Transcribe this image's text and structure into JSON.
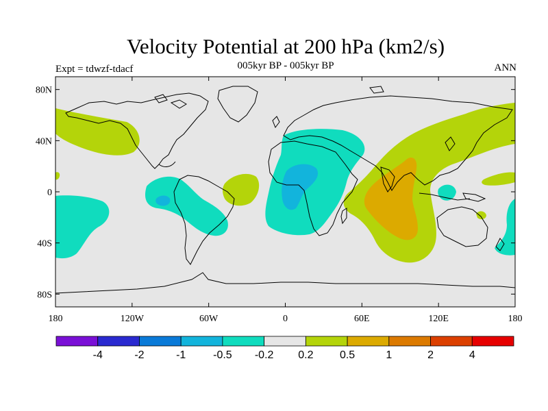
{
  "title": "Velocity Potential at 200 hPa (km2/s)",
  "subtitle": "005kyr BP - 005kyr BP",
  "left_label": "Expt = tdwzf-tdacf",
  "right_label": "ANN",
  "colors": {
    "background_field": "#e6e6e6",
    "coastline": "#000000",
    "frame": "#000000"
  },
  "map": {
    "projection": "cylindrical-equidistant",
    "lon_range": [
      -180,
      180
    ],
    "lat_range": [
      -90,
      90
    ],
    "x_ticks": [
      {
        "lon": -180,
        "label": "180"
      },
      {
        "lon": -120,
        "label": "120W"
      },
      {
        "lon": -60,
        "label": "60W"
      },
      {
        "lon": 0,
        "label": "0"
      },
      {
        "lon": 60,
        "label": "60E"
      },
      {
        "lon": 120,
        "label": "120E"
      },
      {
        "lon": 180,
        "label": "180"
      }
    ],
    "y_ticks": [
      {
        "lat": 80,
        "label": "80N"
      },
      {
        "lat": 40,
        "label": "40N"
      },
      {
        "lat": 0,
        "label": "0"
      },
      {
        "lat": -40,
        "label": "40S"
      },
      {
        "lat": -80,
        "label": "80S"
      }
    ]
  },
  "colorbar": {
    "colors": [
      "#7a10d6",
      "#2a2ad0",
      "#0a7ad8",
      "#12b4dc",
      "#10dcbe",
      "#e6e6e6",
      "#b4d40a",
      "#dcaa00",
      "#dc7a00",
      "#dc4000",
      "#e60000"
    ],
    "labels": [
      "-4",
      "-2",
      "-1",
      "-0.5",
      "-0.2",
      "0.2",
      "0.5",
      "1",
      "2",
      "4"
    ]
  }
}
